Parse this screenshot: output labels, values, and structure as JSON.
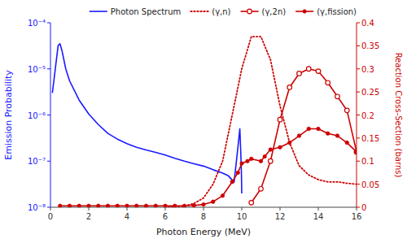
{
  "chart_data": {
    "type": "line",
    "xlabel": "Photon Energy (MeV)",
    "ylabel": "Emission Probability",
    "y2label": "Reaction Cross-Section (barns)",
    "xlim": [
      0,
      16
    ],
    "xticks": [
      0,
      2,
      4,
      6,
      8,
      10,
      12,
      14,
      16
    ],
    "ylim": [
      1e-08,
      0.0001
    ],
    "yticks": [
      {
        "value": 1e-08,
        "label": "10⁻⁸"
      },
      {
        "value": 1e-07,
        "label": "10⁻⁷"
      },
      {
        "value": 1e-06,
        "label": "10⁻⁶"
      },
      {
        "value": 1e-05,
        "label": "10⁻⁵"
      },
      {
        "value": 0.0001,
        "label": "10⁻⁴"
      }
    ],
    "y2lim": [
      0,
      0.4
    ],
    "y2ticks": [
      0.0,
      0.05,
      0.1,
      0.15,
      0.2,
      0.25,
      0.3,
      0.35,
      0.4
    ],
    "log": "y",
    "grid": false,
    "legend": "upper right",
    "series": [
      {
        "name": "Photon Spectrum",
        "color": "#1a1aff",
        "line_style": "solid",
        "marker": "none",
        "x": [
          0.1,
          0.4,
          0.5,
          0.6,
          0.8,
          1.0,
          1.5,
          2.0,
          2.5,
          3.0,
          3.5,
          4.0,
          4.5,
          5.0,
          5.5,
          6.0,
          6.5,
          7.0,
          7.5,
          8.0,
          8.5,
          9.0,
          9.3,
          9.6,
          9.8,
          9.9,
          9.95,
          9.98,
          10.0
        ],
        "values": [
          3e-06,
          3.2e-05,
          3.5e-05,
          2.5e-05,
          1e-05,
          5.5e-06,
          2.1e-06,
          1.05e-06,
          6.2e-07,
          4e-07,
          3e-07,
          2.4e-07,
          2e-07,
          1.75e-07,
          1.55e-07,
          1.35e-07,
          1.15e-07,
          1e-07,
          8.8e-08,
          7.8e-08,
          6.5e-08,
          5.5e-08,
          4.8e-08,
          3.5e-08,
          2e-07,
          5e-07,
          1.5e-07,
          6e-08,
          2e-08
        ]
      },
      {
        "name": "(γ,n)",
        "color": "#cc0000",
        "axis": "y2",
        "line_style": "dotted",
        "marker": "none",
        "x": [
          6.0,
          6.5,
          7.0,
          7.5,
          8.0,
          8.5,
          9.0,
          9.5,
          10.0,
          10.5,
          11.0,
          11.5,
          12.0,
          12.5,
          13.0,
          13.5,
          14.0,
          14.5,
          15.0,
          15.5,
          16.0
        ],
        "values": [
          0.0,
          0.001,
          0.003,
          0.008,
          0.02,
          0.05,
          0.1,
          0.2,
          0.3,
          0.37,
          0.37,
          0.32,
          0.22,
          0.14,
          0.09,
          0.07,
          0.06,
          0.055,
          0.055,
          0.052,
          0.05
        ]
      },
      {
        "name": "(γ,2n)",
        "color": "#cc0000",
        "axis": "y2",
        "line_style": "solid",
        "marker": "open-circle",
        "x": [
          10.5,
          11.0,
          11.5,
          12.0,
          12.5,
          13.0,
          13.5,
          14.0,
          14.5,
          15.0,
          15.5,
          16.0
        ],
        "values": [
          0.01,
          0.04,
          0.1,
          0.19,
          0.26,
          0.29,
          0.3,
          0.295,
          0.27,
          0.24,
          0.21,
          0.12
        ]
      },
      {
        "name": "(γ,fission)",
        "color": "#cc0000",
        "axis": "y2",
        "line_style": "solid",
        "marker": "circle",
        "x": [
          0.5,
          1.0,
          1.5,
          2.0,
          2.5,
          3.0,
          3.5,
          4.0,
          4.5,
          5.0,
          5.5,
          6.0,
          6.5,
          7.0,
          7.5,
          8.0,
          8.5,
          9.0,
          9.5,
          9.8,
          10.0,
          10.3,
          10.5,
          11.0,
          11.2,
          11.5,
          12.0,
          12.5,
          13.0,
          13.5,
          14.0,
          14.5,
          15.0,
          15.5,
          16.0
        ],
        "values": [
          0.003,
          0.003,
          0.003,
          0.003,
          0.003,
          0.003,
          0.003,
          0.003,
          0.003,
          0.003,
          0.003,
          0.003,
          0.003,
          0.003,
          0.004,
          0.006,
          0.012,
          0.025,
          0.055,
          0.075,
          0.095,
          0.1,
          0.105,
          0.1,
          0.11,
          0.125,
          0.13,
          0.14,
          0.155,
          0.17,
          0.17,
          0.16,
          0.155,
          0.14,
          0.12
        ]
      }
    ]
  }
}
